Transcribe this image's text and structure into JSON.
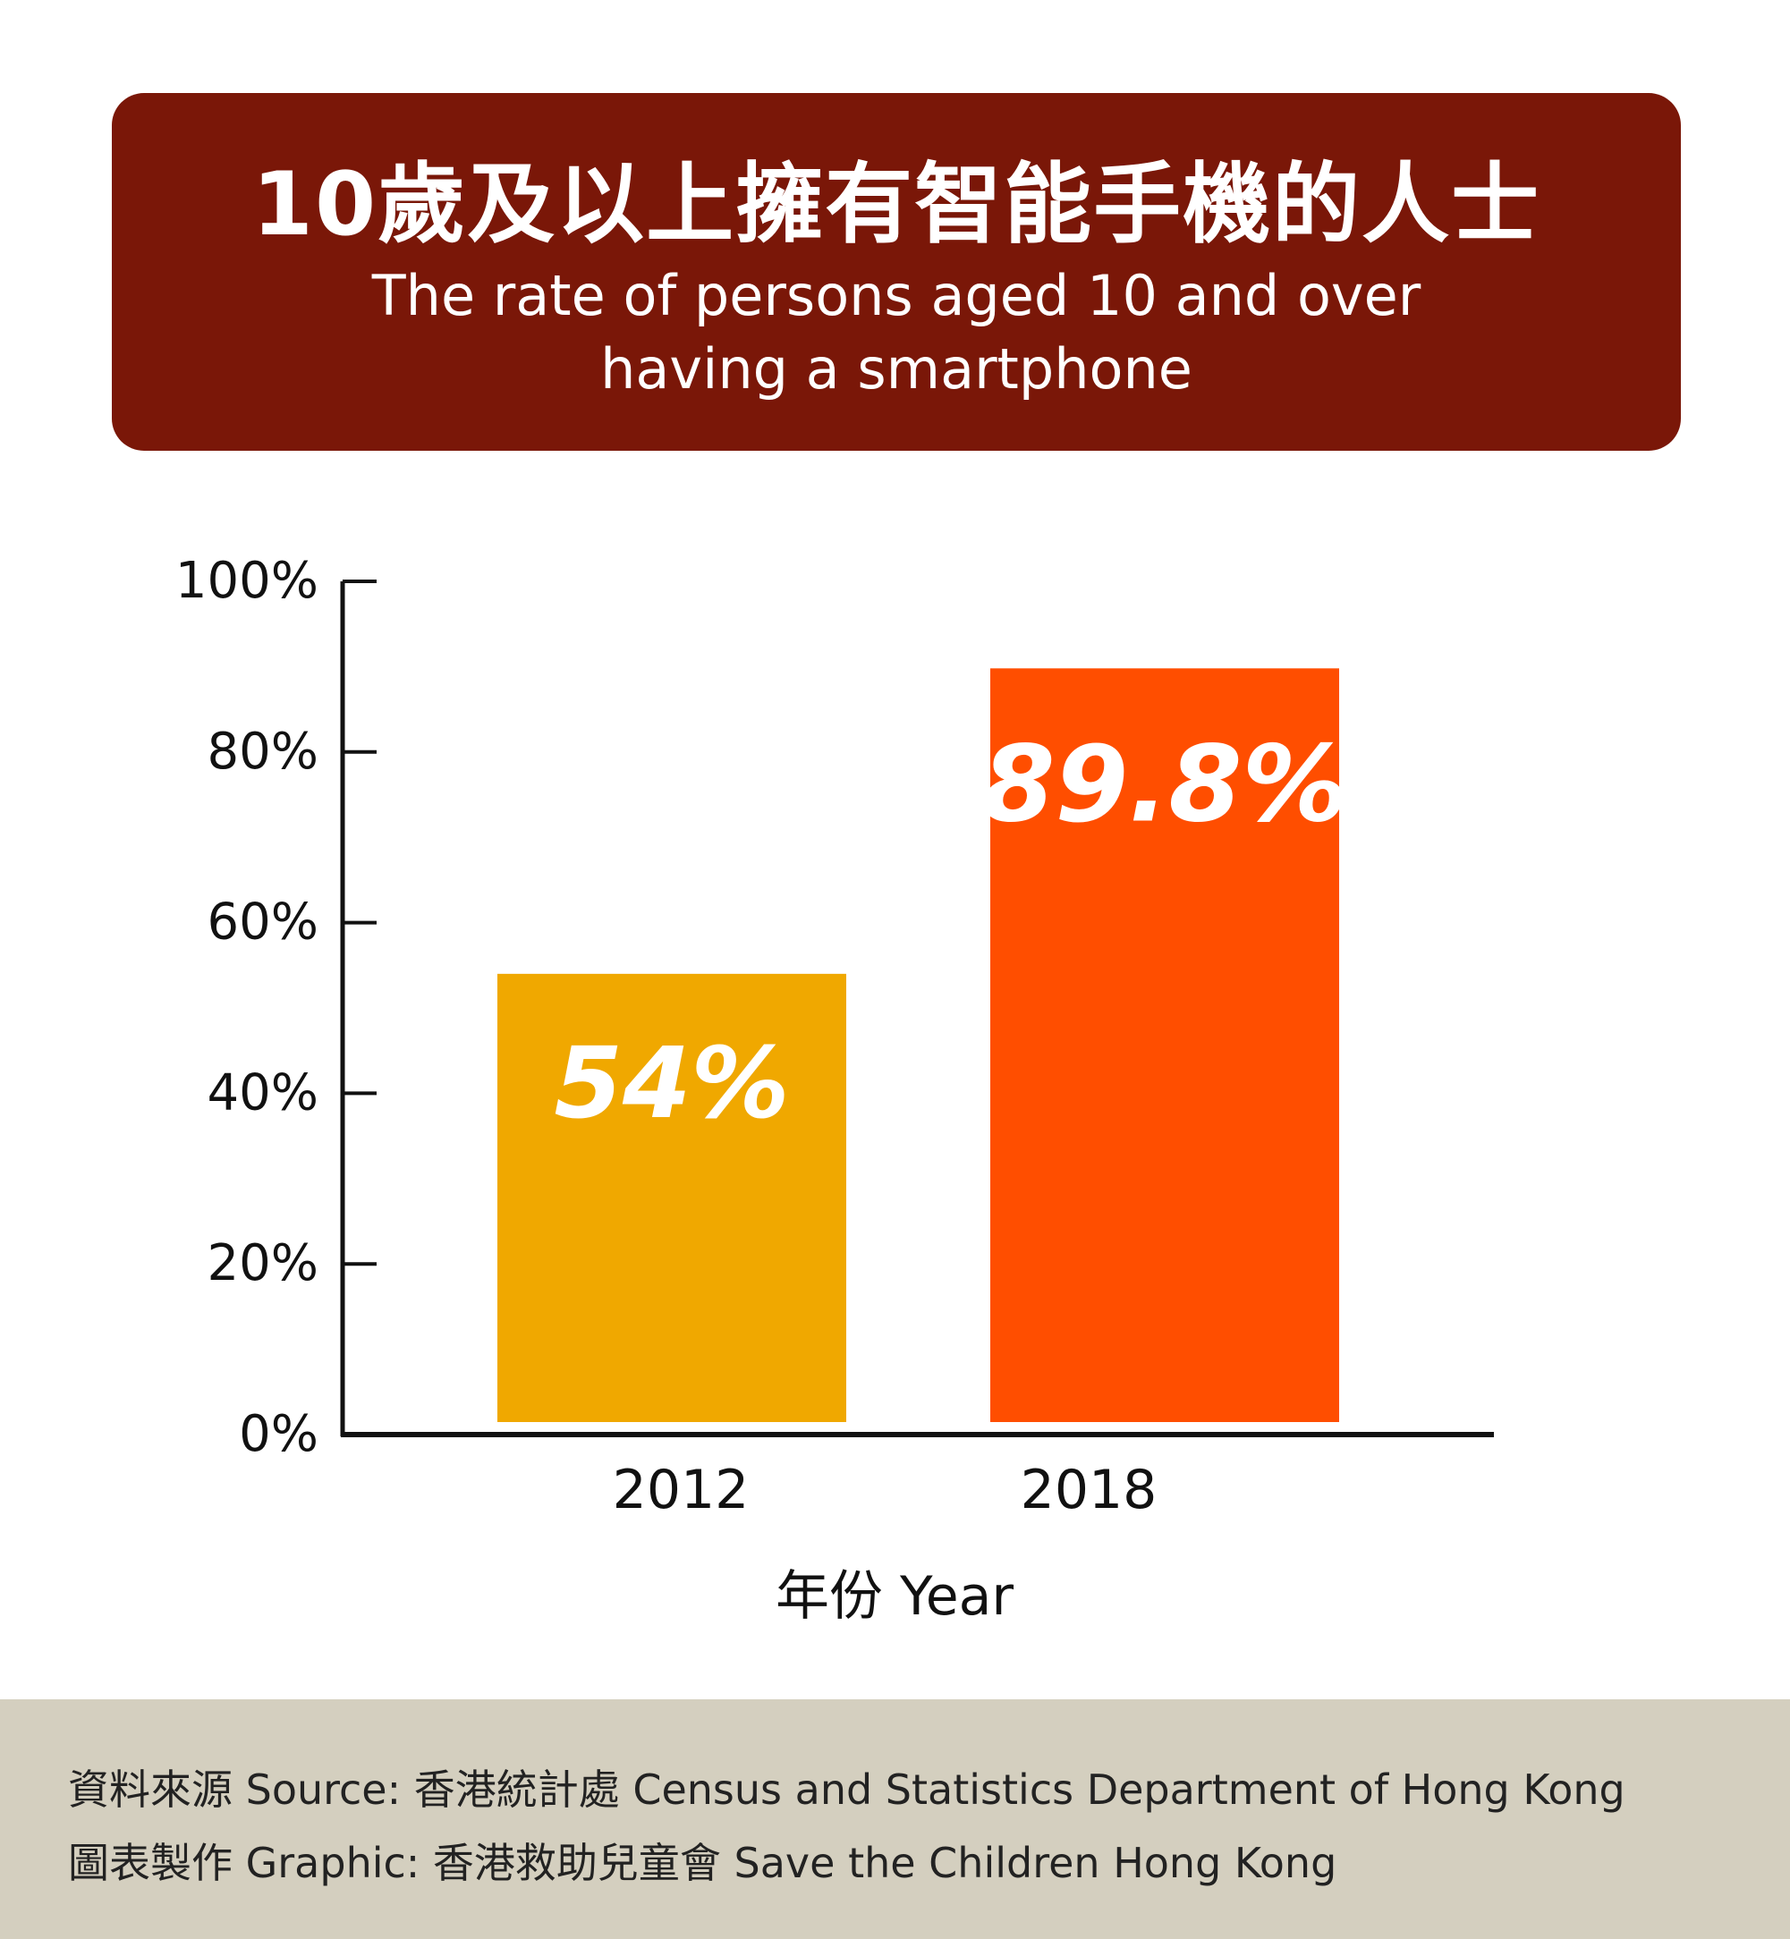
{
  "header": {
    "title_zh": "10歲及以上擁有智能手機的人士",
    "title_en_line1": "The rate of persons aged 10 and over",
    "title_en_line2": "having a smartphone"
  },
  "chart_data": {
    "type": "bar",
    "categories": [
      "2012",
      "2018"
    ],
    "values": [
      54,
      89.8
    ],
    "data_labels": [
      "54%",
      "89.8%"
    ],
    "bar_colors": [
      "#f0a800",
      "#ff4e00"
    ],
    "yticks": [
      "0%",
      "20%",
      "40%",
      "60%",
      "80%",
      "100%"
    ],
    "ylim": [
      0,
      100
    ],
    "xlabel": "年份 Year",
    "ylabel": "",
    "grid": false,
    "legend": "none"
  },
  "footer": {
    "source": "資料來源 Source: 香港統計處 Census and Statistics Department of Hong Kong",
    "graphic": "圖表製作 Graphic: 香港救助兒童會 Save the Children Hong Kong"
  },
  "colors": {
    "header_bg": "#7a1708",
    "footer_bg": "#d4cfbf",
    "axis": "#111111"
  }
}
